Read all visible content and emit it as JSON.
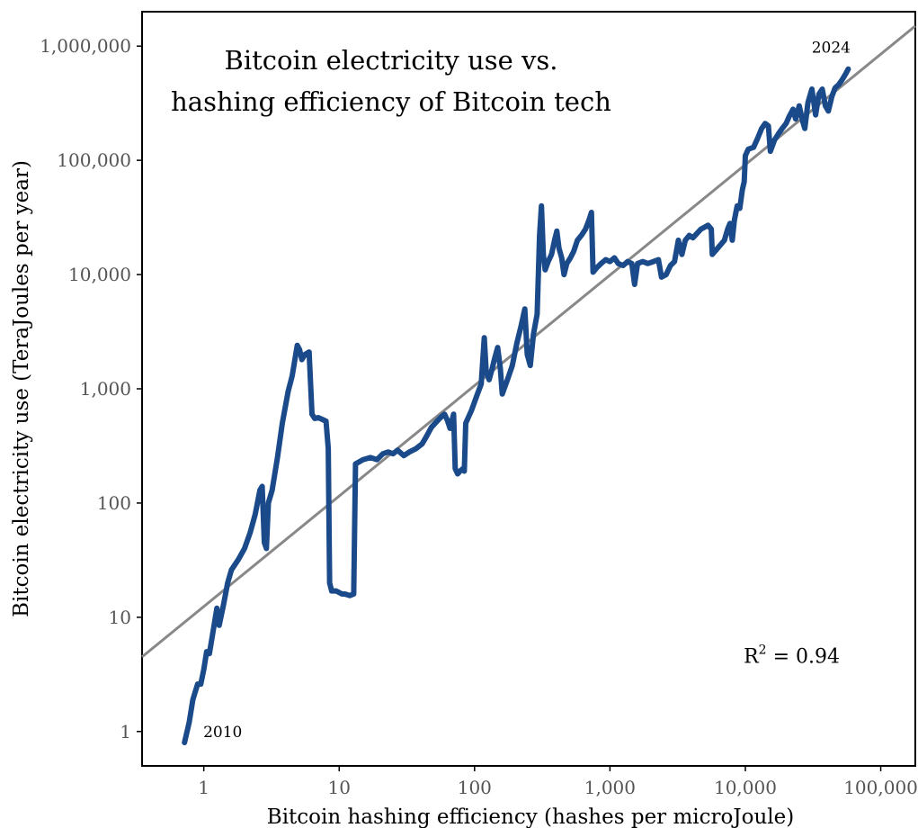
{
  "chart_data": {
    "type": "line",
    "title_lines": [
      "Bitcoin electricity use vs.",
      "hashing efficiency of Bitcoin tech"
    ],
    "xlabel": "Bitcoin hashing efficiency (hashes per microJoule)",
    "ylabel": "Bitcoin electricity use (TeraJoules per year)",
    "x_scale": "log",
    "y_scale": "log",
    "xlim": [
      0.35,
      180000
    ],
    "ylim": [
      0.5,
      2000000
    ],
    "x_ticks": [
      {
        "value": 1,
        "label": "1"
      },
      {
        "value": 10,
        "label": "10"
      },
      {
        "value": 100,
        "label": "100"
      },
      {
        "value": 1000,
        "label": "1,000"
      },
      {
        "value": 10000,
        "label": "10,000"
      },
      {
        "value": 100000,
        "label": "100,000"
      }
    ],
    "y_ticks": [
      {
        "value": 1,
        "label": "1"
      },
      {
        "value": 10,
        "label": "10"
      },
      {
        "value": 100,
        "label": "100"
      },
      {
        "value": 1000,
        "label": "1,000"
      },
      {
        "value": 10000,
        "label": "10,000"
      },
      {
        "value": 100000,
        "label": "100,000"
      },
      {
        "value": 1000000,
        "label": "1,000,000"
      }
    ],
    "grid": false,
    "series": [
      {
        "color": "#1a4a8a",
        "points": [
          [
            0.72,
            0.8
          ],
          [
            0.78,
            1.2
          ],
          [
            0.83,
            1.9
          ],
          [
            0.9,
            2.6
          ],
          [
            0.95,
            2.6
          ],
          [
            1.0,
            3.5
          ],
          [
            1.05,
            5.0
          ],
          [
            1.1,
            4.8
          ],
          [
            1.2,
            9.0
          ],
          [
            1.25,
            12.0
          ],
          [
            1.3,
            8.5
          ],
          [
            1.4,
            13.0
          ],
          [
            1.5,
            20.0
          ],
          [
            1.6,
            26.0
          ],
          [
            1.8,
            32.0
          ],
          [
            2.0,
            40.0
          ],
          [
            2.2,
            55.0
          ],
          [
            2.4,
            80.0
          ],
          [
            2.6,
            130.0
          ],
          [
            2.7,
            140.0
          ],
          [
            2.8,
            45.0
          ],
          [
            2.9,
            40.0
          ],
          [
            3.0,
            100.0
          ],
          [
            3.2,
            130.0
          ],
          [
            3.5,
            250.0
          ],
          [
            3.8,
            500.0
          ],
          [
            4.2,
            950.0
          ],
          [
            4.5,
            1300.0
          ],
          [
            4.9,
            2400.0
          ],
          [
            5.1,
            2200.0
          ],
          [
            5.3,
            1800.0
          ],
          [
            5.6,
            2000.0
          ],
          [
            6.0,
            2100.0
          ],
          [
            6.3,
            600.0
          ],
          [
            6.6,
            550.0
          ],
          [
            7.0,
            560.0
          ],
          [
            7.5,
            540.0
          ],
          [
            8.0,
            520.0
          ],
          [
            8.3,
            300.0
          ],
          [
            8.5,
            20.0
          ],
          [
            8.8,
            17.0
          ],
          [
            9.5,
            17.0
          ],
          [
            10.5,
            16.0
          ],
          [
            11.0,
            16.0
          ],
          [
            12.0,
            15.5
          ],
          [
            12.8,
            16.0
          ],
          [
            13.2,
            220.0
          ],
          [
            15.0,
            240.0
          ],
          [
            17.0,
            250.0
          ],
          [
            19.0,
            240.0
          ],
          [
            21.0,
            270.0
          ],
          [
            23.0,
            280.0
          ],
          [
            25.0,
            270.0
          ],
          [
            27.0,
            290.0
          ],
          [
            30.0,
            260.0
          ],
          [
            33.0,
            280.0
          ],
          [
            37.0,
            300.0
          ],
          [
            41.0,
            330.0
          ],
          [
            44.0,
            380.0
          ],
          [
            48.0,
            460.0
          ],
          [
            52.0,
            510.0
          ],
          [
            56.0,
            560.0
          ],
          [
            60.0,
            600.0
          ],
          [
            63.0,
            530.0
          ],
          [
            66.0,
            450.0
          ],
          [
            70.0,
            600.0
          ],
          [
            72.0,
            200.0
          ],
          [
            75.0,
            180.0
          ],
          [
            78.0,
            190.0
          ],
          [
            82.0,
            200.0
          ],
          [
            84.0,
            190.0
          ],
          [
            86.0,
            500.0
          ],
          [
            95.0,
            650.0
          ],
          [
            105.0,
            900.0
          ],
          [
            112.0,
            1100.0
          ],
          [
            118.0,
            2800.0
          ],
          [
            122.0,
            1400.0
          ],
          [
            128.0,
            1200.0
          ],
          [
            135.0,
            1500.0
          ],
          [
            140.0,
            1800.0
          ],
          [
            148.0,
            2300.0
          ],
          [
            155.0,
            1500.0
          ],
          [
            160.0,
            900.0
          ],
          [
            175.0,
            1200.0
          ],
          [
            190.0,
            1600.0
          ],
          [
            205.0,
            2500.0
          ],
          [
            220.0,
            3500.0
          ],
          [
            235.0,
            5000.0
          ],
          [
            245.0,
            2000.0
          ],
          [
            258.0,
            1600.0
          ],
          [
            272.0,
            3000.0
          ],
          [
            290.0,
            4500.0
          ],
          [
            302.0,
            22000.0
          ],
          [
            312.0,
            40000.0
          ],
          [
            322.0,
            15000.0
          ],
          [
            332.0,
            11000.0
          ],
          [
            350.0,
            13000.0
          ],
          [
            370.0,
            15000.0
          ],
          [
            390.0,
            20000.0
          ],
          [
            405.0,
            24000.0
          ],
          [
            420.0,
            17000.0
          ],
          [
            440.0,
            14000.0
          ],
          [
            458.0,
            10000.0
          ],
          [
            480.0,
            12500.0
          ],
          [
            510.0,
            14000.0
          ],
          [
            540.0,
            16000.0
          ],
          [
            575.0,
            20000.0
          ],
          [
            615.0,
            22000.0
          ],
          [
            660.0,
            25000.0
          ],
          [
            700.0,
            30000.0
          ],
          [
            730.0,
            35000.0
          ],
          [
            750.0,
            10500.0
          ],
          [
            800.0,
            11500.0
          ],
          [
            860.0,
            12500.0
          ],
          [
            930.0,
            13500.0
          ],
          [
            1000.0,
            13000.0
          ],
          [
            1080.0,
            14000.0
          ],
          [
            1150.0,
            12500.0
          ],
          [
            1250.0,
            12000.0
          ],
          [
            1350.0,
            13000.0
          ],
          [
            1450.0,
            12500.0
          ],
          [
            1520.0,
            8200.0
          ],
          [
            1600.0,
            12500.0
          ],
          [
            1750.0,
            13000.0
          ],
          [
            1900.0,
            12500.0
          ],
          [
            2100.0,
            13000.0
          ],
          [
            2280.0,
            13500.0
          ],
          [
            2400.0,
            9500.0
          ],
          [
            2600.0,
            10000.0
          ],
          [
            2800.0,
            12000.0
          ],
          [
            3000.0,
            13000.0
          ],
          [
            3200.0,
            20000.0
          ],
          [
            3400.0,
            15000.0
          ],
          [
            3600.0,
            20000.0
          ],
          [
            3850.0,
            22000.0
          ],
          [
            4100.0,
            21000.0
          ],
          [
            4400.0,
            23000.0
          ],
          [
            4700.0,
            25000.0
          ],
          [
            5000.0,
            26000.0
          ],
          [
            5300.0,
            27000.0
          ],
          [
            5600.0,
            25000.0
          ],
          [
            5700.0,
            15000.0
          ],
          [
            6100.0,
            16500.0
          ],
          [
            6500.0,
            18000.0
          ],
          [
            7000.0,
            20000.0
          ],
          [
            7400.0,
            25000.0
          ],
          [
            7700.0,
            28000.0
          ],
          [
            8000.0,
            20000.0
          ],
          [
            8300.0,
            30000.0
          ],
          [
            8700.0,
            40000.0
          ],
          [
            9100.0,
            38000.0
          ],
          [
            9500.0,
            55000.0
          ],
          [
            9800.0,
            65000.0
          ],
          [
            10000.0,
            110000.0
          ],
          [
            10500.0,
            125000.0
          ],
          [
            11500.0,
            130000.0
          ],
          [
            12300.0,
            155000.0
          ],
          [
            13200.0,
            190000.0
          ],
          [
            14000.0,
            210000.0
          ],
          [
            14800.0,
            200000.0
          ],
          [
            15300.0,
            120000.0
          ],
          [
            16400.0,
            150000.0
          ],
          [
            17500.0,
            170000.0
          ],
          [
            18700.0,
            190000.0
          ],
          [
            20000.0,
            210000.0
          ],
          [
            21000.0,
            240000.0
          ],
          [
            22500.0,
            280000.0
          ],
          [
            23500.0,
            230000.0
          ],
          [
            25000.0,
            300000.0
          ],
          [
            26500.0,
            220000.0
          ],
          [
            27500.0,
            190000.0
          ],
          [
            29000.0,
            320000.0
          ],
          [
            31000.0,
            420000.0
          ],
          [
            33000.0,
            250000.0
          ],
          [
            35000.0,
            380000.0
          ],
          [
            37000.0,
            420000.0
          ],
          [
            39000.0,
            300000.0
          ],
          [
            41000.0,
            270000.0
          ],
          [
            43500.0,
            360000.0
          ],
          [
            46000.0,
            430000.0
          ],
          [
            49000.0,
            460000.0
          ],
          [
            52000.0,
            510000.0
          ],
          [
            55000.0,
            570000.0
          ],
          [
            57500.0,
            630000.0
          ]
        ]
      }
    ],
    "trendline": {
      "color": "#888888",
      "from": [
        0.35,
        4.5
      ],
      "to": [
        180000,
        1500000
      ]
    },
    "annotations": [
      {
        "text": "2010",
        "x": 1.38,
        "y": 1.0
      },
      {
        "text": "2024",
        "x": 43000,
        "y": 980000
      },
      {
        "text": "= 0.94",
        "x": 22000,
        "y": 4.6,
        "prefix": "R",
        "superscript": "2"
      }
    ]
  }
}
